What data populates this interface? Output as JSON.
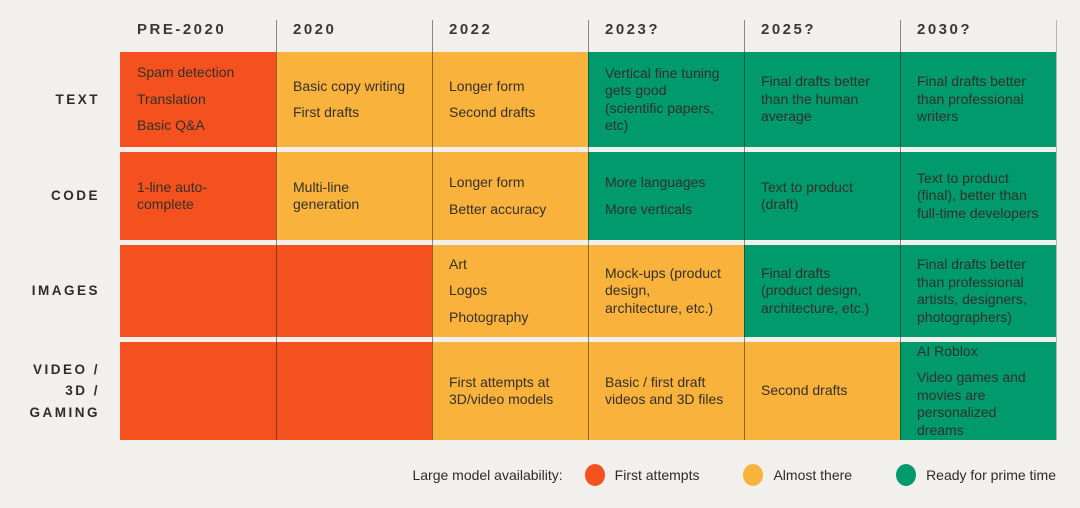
{
  "palette": {
    "background": "#F2F0EC",
    "status_colors": {
      "first_attempts": "#F4511F",
      "almost_there": "#F9B23C",
      "ready_for_prime_time": "#019A6D"
    },
    "cell_text": "#33302A",
    "header_text": "#3A3835",
    "label_text": "#2E2C29",
    "legend_text": "#2E2B26"
  },
  "chart_data": {
    "type": "table",
    "title": "",
    "columns": [
      "PRE-2020",
      "2020",
      "2022",
      "2023?",
      "2025?",
      "2030?"
    ],
    "rows": [
      {
        "label_lines": [
          "TEXT"
        ],
        "cells": [
          {
            "status": "first_attempts",
            "items": [
              "Spam detection",
              "Translation",
              "Basic Q&A"
            ]
          },
          {
            "status": "almost_there",
            "items": [
              "Basic copy writing",
              "First drafts"
            ]
          },
          {
            "status": "almost_there",
            "items": [
              "Longer form",
              "Second drafts"
            ]
          },
          {
            "status": "ready_for_prime_time",
            "items": [
              "Vertical fine tuning gets good (scientific papers, etc)"
            ]
          },
          {
            "status": "ready_for_prime_time",
            "items": [
              "Final drafts better than the human average"
            ]
          },
          {
            "status": "ready_for_prime_time",
            "items": [
              "Final drafts better than professional writers"
            ]
          }
        ]
      },
      {
        "label_lines": [
          "CODE"
        ],
        "cells": [
          {
            "status": "first_attempts",
            "items": [
              "1-line auto-complete"
            ]
          },
          {
            "status": "almost_there",
            "items": [
              "Multi-line generation"
            ]
          },
          {
            "status": "almost_there",
            "items": [
              "Longer form",
              "Better accuracy"
            ]
          },
          {
            "status": "ready_for_prime_time",
            "items": [
              "More languages",
              "More verticals"
            ]
          },
          {
            "status": "ready_for_prime_time",
            "items": [
              "Text to product (draft)"
            ]
          },
          {
            "status": "ready_for_prime_time",
            "items": [
              "Text to product (final), better than full-time developers"
            ]
          }
        ]
      },
      {
        "label_lines": [
          "IMAGES"
        ],
        "cells": [
          {
            "status": "first_attempts",
            "items": []
          },
          {
            "status": "first_attempts",
            "items": []
          },
          {
            "status": "almost_there",
            "items": [
              "Art",
              "Logos",
              "Photography"
            ]
          },
          {
            "status": "almost_there",
            "items": [
              "Mock-ups (product design, architecture, etc.)"
            ]
          },
          {
            "status": "ready_for_prime_time",
            "items": [
              "Final drafts (product design, architecture, etc.)"
            ]
          },
          {
            "status": "ready_for_prime_time",
            "items": [
              "Final drafts better than professional artists, designers, photographers)"
            ]
          }
        ]
      },
      {
        "label_lines": [
          "VIDEO /",
          "3D /",
          "GAMING"
        ],
        "cells": [
          {
            "status": "first_attempts",
            "items": []
          },
          {
            "status": "first_attempts",
            "items": []
          },
          {
            "status": "almost_there",
            "items": [
              "First attempts at 3D/video models"
            ]
          },
          {
            "status": "almost_there",
            "items": [
              "Basic / first draft videos and 3D files"
            ]
          },
          {
            "status": "almost_there",
            "items": [
              "Second drafts"
            ]
          },
          {
            "status": "ready_for_prime_time",
            "items": [
              "AI Roblox",
              "Video games and movies are personalized dreams"
            ]
          }
        ]
      }
    ],
    "legend": {
      "title": "Large model availability:",
      "items": [
        {
          "label": "First attempts",
          "status": "first_attempts"
        },
        {
          "label": "Almost there",
          "status": "almost_there"
        },
        {
          "label": "Ready for prime time",
          "status": "ready_for_prime_time"
        }
      ]
    }
  }
}
